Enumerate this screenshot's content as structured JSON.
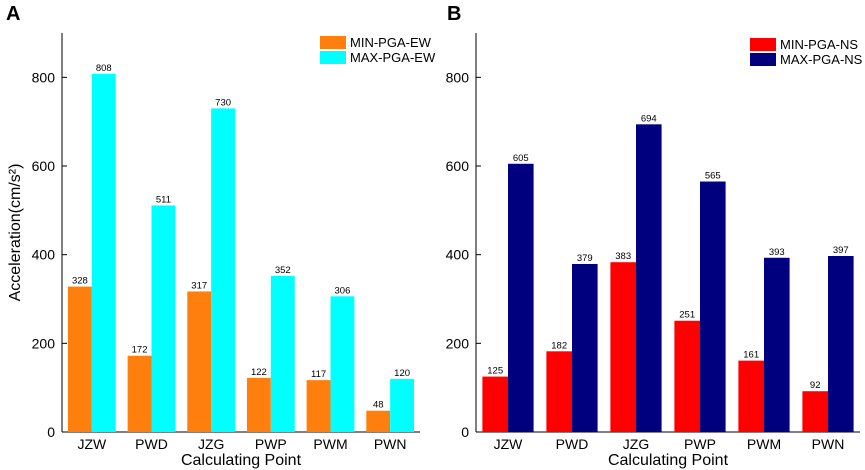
{
  "chart_data": [
    {
      "type": "bar",
      "panel_label": "A",
      "categories": [
        "JZW",
        "PWD",
        "JZG",
        "PWP",
        "PWM",
        "PWN"
      ],
      "series": [
        {
          "name": "MIN-PGA-EW",
          "color": "#ff7f0e",
          "values": [
            328,
            172,
            317,
            122,
            117,
            48
          ]
        },
        {
          "name": "MAX-PGA-EW",
          "color": "#00ffff",
          "values": [
            808,
            511,
            730,
            352,
            306,
            120
          ]
        }
      ],
      "xlabel": "Calculating Point",
      "ylabel": "Acceleration(cm/s²)",
      "yticks": [
        0,
        200,
        400,
        600,
        800
      ],
      "ylim": [
        0,
        900
      ],
      "legend": "top-right"
    },
    {
      "type": "bar",
      "panel_label": "B",
      "categories": [
        "JZW",
        "PWD",
        "JZG",
        "PWP",
        "PWM",
        "PWN"
      ],
      "series": [
        {
          "name": "MIN-PGA-NS",
          "color": "#ff0000",
          "values": [
            125,
            182,
            383,
            251,
            161,
            92
          ]
        },
        {
          "name": "MAX-PGA-NS",
          "color": "#00007f",
          "values": [
            605,
            379,
            694,
            565,
            393,
            397
          ]
        }
      ],
      "xlabel": "Calculating Point",
      "ylabel": "",
      "yticks": [
        0,
        200,
        400,
        600,
        800
      ],
      "ylim": [
        0,
        900
      ],
      "legend": "top-right"
    }
  ]
}
